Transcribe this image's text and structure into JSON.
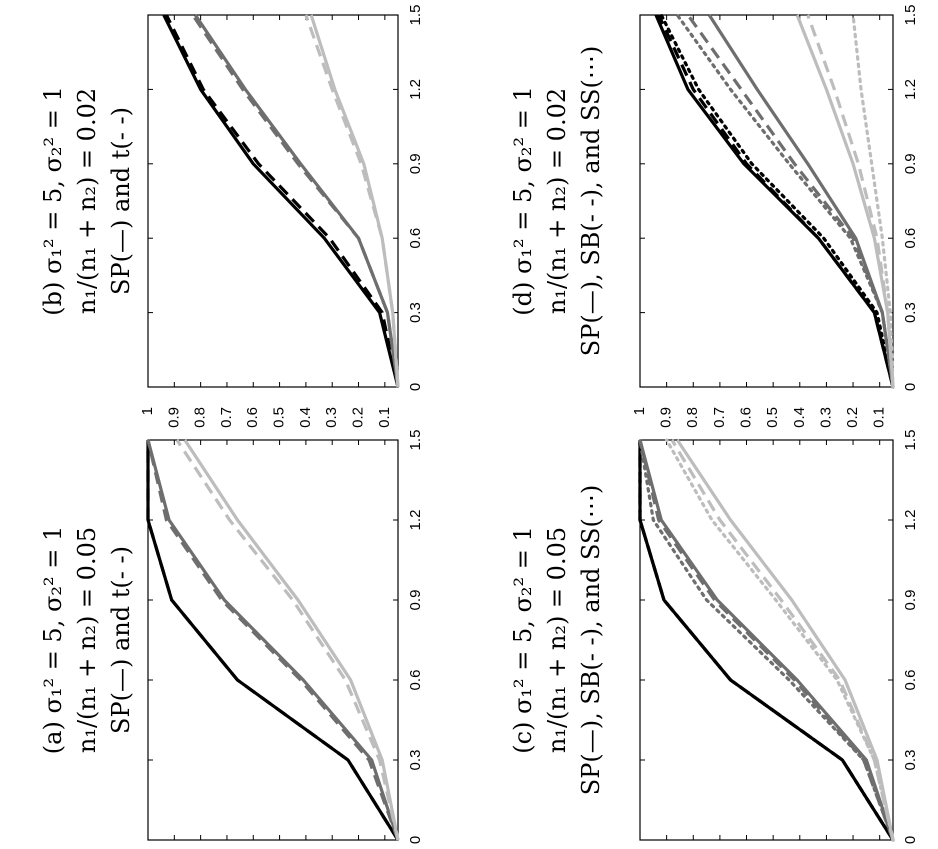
{
  "chart_data": [
    {
      "type": "line",
      "panel": "a",
      "caption": [
        "(a) σ₁² = 5, σ₂² = 1",
        "n₁/(n₁ + n₂) = 0.05",
        "SP(—) and t(- -)"
      ],
      "x": [
        0,
        0.3,
        0.6,
        0.9,
        1.2,
        1.5
      ],
      "xticks": [
        "0",
        "0.3",
        "0.6",
        "0.9",
        "1.2",
        "1.5"
      ],
      "yticks": [
        "0.1",
        "0.2",
        "0.3",
        "0.4",
        "0.5",
        "0.6",
        "0.7",
        "0.8",
        "0.9",
        "1"
      ],
      "xlim": [
        0,
        1.5
      ],
      "ylim": [
        0.05,
        1
      ],
      "series": [
        {
          "method": "SP",
          "color": "#000000",
          "dash": "solid",
          "values": [
            0.05,
            0.24,
            0.66,
            0.91,
            1.0,
            1.0
          ]
        },
        {
          "method": "t",
          "color": "#000000",
          "dash": "dashed",
          "values": [
            0.05,
            0.24,
            0.66,
            0.91,
            1.0,
            1.0
          ]
        },
        {
          "method": "SP",
          "color": "#6e6e6e",
          "dash": "solid",
          "values": [
            0.05,
            0.15,
            0.41,
            0.71,
            0.92,
            1.0
          ]
        },
        {
          "method": "t",
          "color": "#6e6e6e",
          "dash": "dashed",
          "values": [
            0.05,
            0.16,
            0.42,
            0.72,
            0.93,
            1.0
          ]
        },
        {
          "method": "SP",
          "color": "#bdbdbd",
          "dash": "solid",
          "values": [
            0.05,
            0.11,
            0.23,
            0.43,
            0.66,
            0.86
          ]
        },
        {
          "method": "t",
          "color": "#bdbdbd",
          "dash": "dashed",
          "values": [
            0.05,
            0.12,
            0.25,
            0.45,
            0.69,
            0.89
          ]
        }
      ]
    },
    {
      "type": "line",
      "panel": "b",
      "caption": [
        "(b) σ₁² = 5, σ₂² = 1",
        "n₁/(n₁ + n₂) = 0.02",
        "SP(—) and t(- -)"
      ],
      "x": [
        0,
        0.3,
        0.6,
        0.9,
        1.2,
        1.5
      ],
      "xticks": [
        "0",
        "0.3",
        "0.6",
        "0.9",
        "1.2",
        "1.5"
      ],
      "yticks": [
        "0.1",
        "0.2",
        "0.3",
        "0.4",
        "0.5",
        "0.6",
        "0.7",
        "0.8",
        "0.9",
        "1"
      ],
      "xlim": [
        0,
        1.5
      ],
      "ylim": [
        0.05,
        1
      ],
      "series": [
        {
          "method": "SP",
          "color": "#000000",
          "dash": "solid",
          "values": [
            0.05,
            0.12,
            0.33,
            0.6,
            0.8,
            0.94
          ]
        },
        {
          "method": "t",
          "color": "#000000",
          "dash": "dashed",
          "values": [
            0.05,
            0.11,
            0.31,
            0.58,
            0.79,
            0.93
          ]
        },
        {
          "method": "SP",
          "color": "#6e6e6e",
          "dash": "solid",
          "values": [
            0.05,
            0.09,
            0.2,
            0.42,
            0.63,
            0.82
          ]
        },
        {
          "method": "t",
          "color": "#6e6e6e",
          "dash": "dashed",
          "values": [
            0.05,
            0.09,
            0.2,
            0.43,
            0.64,
            0.83
          ]
        },
        {
          "method": "SP",
          "color": "#bdbdbd",
          "dash": "solid",
          "values": [
            0.05,
            0.07,
            0.11,
            0.18,
            0.29,
            0.38
          ]
        },
        {
          "method": "t",
          "color": "#bdbdbd",
          "dash": "dashed",
          "values": [
            0.05,
            0.07,
            0.11,
            0.19,
            0.3,
            0.4
          ]
        }
      ]
    },
    {
      "type": "line",
      "panel": "c",
      "caption": [
        "(c) σ₁² = 5, σ₂² = 1",
        "n₁/(n₁ + n₂) = 0.05",
        "SP(—), SB(- -), and SS(⋯)"
      ],
      "x": [
        0,
        0.3,
        0.6,
        0.9,
        1.2,
        1.5
      ],
      "xticks": [
        "0",
        "0.3",
        "0.6",
        "0.9",
        "1.2",
        "1.5"
      ],
      "yticks": [
        "0.1",
        "0.2",
        "0.3",
        "0.4",
        "0.5",
        "0.6",
        "0.7",
        "0.8",
        "0.9",
        "1"
      ],
      "xlim": [
        0,
        1.5
      ],
      "ylim": [
        0.05,
        1
      ],
      "series": [
        {
          "method": "SP",
          "color": "#000000",
          "dash": "solid",
          "values": [
            0.05,
            0.24,
            0.66,
            0.91,
            1.0,
            1.0
          ]
        },
        {
          "method": "SB",
          "color": "#000000",
          "dash": "dashed",
          "values": [
            0.05,
            0.24,
            0.66,
            0.91,
            1.0,
            1.0
          ]
        },
        {
          "method": "SS",
          "color": "#000000",
          "dash": "dotted",
          "values": [
            0.05,
            0.24,
            0.66,
            0.91,
            1.0,
            1.0
          ]
        },
        {
          "method": "SP",
          "color": "#6e6e6e",
          "dash": "solid",
          "values": [
            0.05,
            0.15,
            0.41,
            0.71,
            0.92,
            1.0
          ]
        },
        {
          "method": "SB",
          "color": "#6e6e6e",
          "dash": "dashed",
          "values": [
            0.05,
            0.16,
            0.42,
            0.72,
            0.93,
            1.0
          ]
        },
        {
          "method": "SS",
          "color": "#6e6e6e",
          "dash": "dotted",
          "values": [
            0.05,
            0.16,
            0.44,
            0.75,
            0.95,
            1.0
          ]
        },
        {
          "method": "SP",
          "color": "#bdbdbd",
          "dash": "solid",
          "values": [
            0.05,
            0.11,
            0.23,
            0.43,
            0.66,
            0.86
          ]
        },
        {
          "method": "SB",
          "color": "#bdbdbd",
          "dash": "dashed",
          "values": [
            0.05,
            0.12,
            0.25,
            0.47,
            0.7,
            0.88
          ]
        },
        {
          "method": "SS",
          "color": "#bdbdbd",
          "dash": "dotted",
          "values": [
            0.05,
            0.12,
            0.26,
            0.49,
            0.73,
            0.9
          ]
        }
      ]
    },
    {
      "type": "line",
      "panel": "d",
      "caption": [
        "(d) σ₁² = 5, σ₂² = 1",
        "n₁/(n₁ + n₂) = 0.02",
        "SP(—), SB(- -), and SS(⋯)"
      ],
      "x": [
        0,
        0.3,
        0.6,
        0.9,
        1.2,
        1.5
      ],
      "xticks": [
        "0",
        "0.3",
        "0.6",
        "0.9",
        "1.2",
        "1.5"
      ],
      "yticks": [
        "0.1",
        "0.2",
        "0.3",
        "0.4",
        "0.5",
        "0.6",
        "0.7",
        "0.8",
        "0.9",
        "1"
      ],
      "xlim": [
        0,
        1.5
      ],
      "ylim": [
        0.05,
        1
      ],
      "series": [
        {
          "method": "SP",
          "color": "#000000",
          "dash": "solid",
          "values": [
            0.05,
            0.12,
            0.33,
            0.61,
            0.82,
            0.94
          ]
        },
        {
          "method": "SB",
          "color": "#000000",
          "dash": "dashed",
          "values": [
            0.05,
            0.12,
            0.33,
            0.6,
            0.8,
            0.93
          ]
        },
        {
          "method": "SS",
          "color": "#000000",
          "dash": "dotted",
          "values": [
            0.05,
            0.11,
            0.31,
            0.58,
            0.78,
            0.92
          ]
        },
        {
          "method": "SP",
          "color": "#6e6e6e",
          "dash": "solid",
          "values": [
            0.05,
            0.09,
            0.19,
            0.37,
            0.56,
            0.74
          ]
        },
        {
          "method": "SB",
          "color": "#6e6e6e",
          "dash": "dashed",
          "values": [
            0.05,
            0.09,
            0.2,
            0.42,
            0.62,
            0.82
          ]
        },
        {
          "method": "SS",
          "color": "#6e6e6e",
          "dash": "dotted",
          "values": [
            0.05,
            0.09,
            0.21,
            0.44,
            0.66,
            0.86
          ]
        },
        {
          "method": "SP",
          "color": "#bdbdbd",
          "dash": "solid",
          "values": [
            0.05,
            0.07,
            0.12,
            0.2,
            0.3,
            0.41
          ]
        },
        {
          "method": "SB",
          "color": "#bdbdbd",
          "dash": "dashed",
          "values": [
            0.05,
            0.07,
            0.11,
            0.18,
            0.27,
            0.37
          ]
        },
        {
          "method": "SS",
          "color": "#bdbdbd",
          "dash": "dotted",
          "values": [
            0.05,
            0.06,
            0.09,
            0.13,
            0.17,
            0.2
          ]
        }
      ]
    }
  ]
}
